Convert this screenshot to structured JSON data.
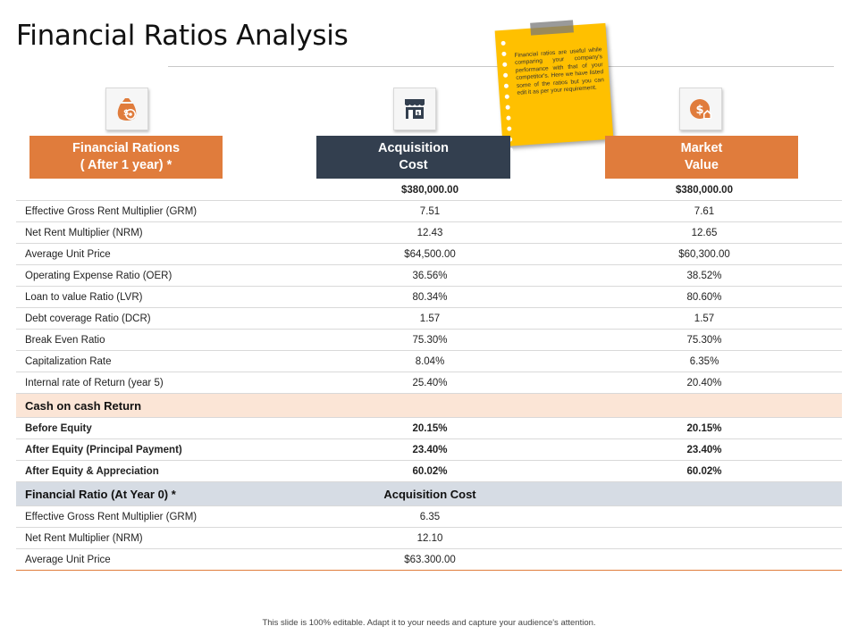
{
  "title": "Financial Ratios Analysis",
  "note": "Financial ratios are useful while comparing your company's performance with that of your competitor's. Here we have listed some of the ratios but you can edit it as per your requirement.",
  "icons": [
    "money-bag-gear-icon",
    "store-icon",
    "dollar-house-icon"
  ],
  "headers": {
    "col1": [
      "Financial Rations",
      "( After 1 year) *"
    ],
    "col2": [
      "Acquisition",
      "Cost"
    ],
    "col3": [
      "Market",
      "Value"
    ]
  },
  "rows": [
    {
      "label": "",
      "acq": "$380,000.00",
      "mkt": "$380,000.00"
    },
    {
      "label": "Effective Gross Rent Multiplier (GRM)",
      "acq": "7.51",
      "mkt": "7.61"
    },
    {
      "label": "Net Rent Multiplier (NRM)",
      "acq": "12.43",
      "mkt": "12.65"
    },
    {
      "label": "Average Unit Price",
      "acq": "$64,500.00",
      "mkt": "$60,300.00"
    },
    {
      "label": "Operating Expense Ratio (OER)",
      "acq": "36.56%",
      "mkt": "38.52%"
    },
    {
      "label": "Loan to value Ratio (LVR)",
      "acq": "80.34%",
      "mkt": "80.60%"
    },
    {
      "label": "Debt coverage Ratio (DCR)",
      "acq": "1.57",
      "mkt": "1.57"
    },
    {
      "label": "Break Even Ratio",
      "acq": "75.30%",
      "mkt": "75.30%"
    },
    {
      "label": "Capitalization Rate",
      "acq": "8.04%",
      "mkt": "6.35%"
    },
    {
      "label": "Internal rate of Return (year 5)",
      "acq": "25.40%",
      "mkt": "20.40%"
    }
  ],
  "cash_section": {
    "title": "Cash on cash Return",
    "rows": [
      {
        "label": "Before Equity",
        "acq": "20.15%",
        "mkt": "20.15%"
      },
      {
        "label": "After Equity  (Principal Payment)",
        "acq": "23.40%",
        "mkt": "23.40%"
      },
      {
        "label": "After Equity  & Appreciation",
        "acq": "60.02%",
        "mkt": "60.02%"
      }
    ]
  },
  "year0_section": {
    "title": "Financial Ratio (At Year 0) *",
    "col_label": "Acquisition Cost",
    "rows": [
      {
        "label": "Effective Gross Rent Multiplier (GRM)",
        "acq": "6.35"
      },
      {
        "label": "Net Rent Multiplier (NRM)",
        "acq": "12.10"
      },
      {
        "label": "Average Unit Price",
        "acq": "$63.300.00"
      }
    ]
  },
  "footer": "This slide is 100% editable.  Adapt it to your needs and capture your audience's attention.",
  "colors": {
    "orange": "#e07c3c",
    "navy": "#333f4f",
    "note": "#ffc000",
    "peach": "#fbe5d6",
    "blue": "#d6dce4"
  }
}
